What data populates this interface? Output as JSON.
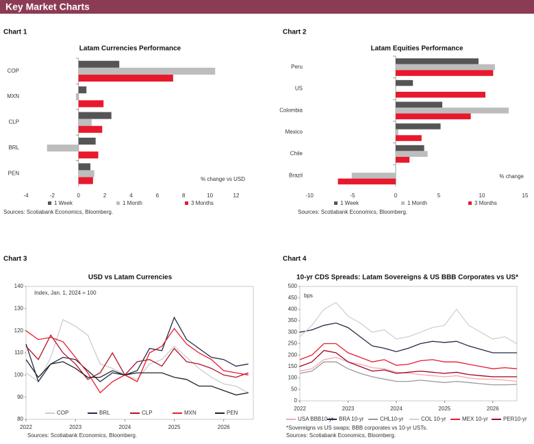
{
  "header": {
    "title": "Key Market Charts"
  },
  "chart_data": [
    {
      "label": "Chart 1",
      "type": "hbar",
      "title": "Latam Currencies Performance",
      "categories": [
        "COP",
        "MXN",
        "CLP",
        "BRL",
        "PEN"
      ],
      "series": [
        {
          "name": "1 Week",
          "color": "#555555",
          "values": [
            3.1,
            0.6,
            2.5,
            1.3,
            0.9
          ]
        },
        {
          "name": "1 Month",
          "color": "#bdbdbd",
          "values": [
            10.4,
            -0.2,
            1.0,
            -2.4,
            1.2
          ]
        },
        {
          "name": "3 Months",
          "color": "#e8192c",
          "values": [
            7.2,
            1.9,
            1.8,
            1.5,
            1.1
          ]
        }
      ],
      "xlim": [
        -4,
        12
      ],
      "xticks": [
        -4,
        -2,
        0,
        2,
        4,
        6,
        8,
        10,
        12
      ],
      "annotation": "% change vs USD",
      "source": "Sources: Scotiabank Economics, Bloomberg.",
      "grid": false
    },
    {
      "label": "Chart 2",
      "type": "hbar",
      "title": "Latam Equities Performance",
      "categories": [
        "Peru",
        "US",
        "Colombia",
        "Mexico",
        "Chile",
        "Brazil"
      ],
      "series": [
        {
          "name": "1 Week",
          "color": "#555555",
          "values": [
            9.6,
            2.0,
            5.4,
            5.2,
            3.3,
            0.0
          ]
        },
        {
          "name": "1 Month",
          "color": "#bdbdbd",
          "values": [
            11.5,
            0.0,
            13.1,
            0.3,
            3.7,
            -5.1
          ]
        },
        {
          "name": "3 Months",
          "color": "#e8192c",
          "values": [
            11.3,
            10.4,
            8.7,
            3.0,
            1.6,
            -6.7
          ]
        }
      ],
      "xlim": [
        -10,
        15
      ],
      "xticks": [
        -10,
        -5,
        0,
        5,
        10,
        15
      ],
      "annotation": "% change",
      "source": "Sources: Scotiabank Economics, Bloomberg.",
      "grid": false
    },
    {
      "label": "Chart 3",
      "type": "line",
      "title": "USD vs Latam Currencies",
      "x": [
        2022,
        2022.25,
        2022.5,
        2022.75,
        2023,
        2023.25,
        2023.5,
        2023.75,
        2024,
        2024.25,
        2024.5,
        2024.75,
        2025,
        2025.25,
        2025.5,
        2025.75,
        2026,
        2026.25,
        2026.5
      ],
      "series": [
        {
          "name": "COP",
          "color": "#cccccc",
          "values": [
            101,
            97,
            108,
            125,
            122,
            118,
            105,
            103,
            100,
            98,
            105,
            107,
            113,
            108,
            103,
            99,
            96,
            95,
            92
          ]
        },
        {
          "name": "BRL",
          "color": "#1f2a44",
          "values": [
            114,
            97,
            105,
            108,
            107,
            102,
            97,
            101,
            100,
            102,
            112,
            111,
            126,
            116,
            112,
            108,
            107,
            104,
            105
          ]
        },
        {
          "name": "CLP",
          "color": "#b0102a",
          "values": [
            113,
            107,
            118,
            110,
            105,
            98,
            101,
            110,
            100,
            106,
            107,
            104,
            112,
            106,
            105,
            103,
            100,
            99,
            101
          ]
        },
        {
          "name": "MXN",
          "color": "#e8192c",
          "values": [
            120,
            116,
            117,
            115,
            108,
            101,
            92,
            97,
            100,
            97,
            110,
            113,
            121,
            114,
            110,
            107,
            102,
            101,
            100
          ]
        },
        {
          "name": "PEN",
          "color": "#222222",
          "values": [
            107,
            99,
            105,
            106,
            103,
            99,
            99,
            102,
            100,
            101,
            101,
            101,
            99,
            98,
            95,
            95,
            93,
            91,
            92
          ]
        }
      ],
      "xlim": [
        2022,
        2026.6
      ],
      "xticks": [
        2022,
        2023,
        2024,
        2025,
        2026
      ],
      "ylim": [
        80,
        140
      ],
      "yticks": [
        80,
        90,
        100,
        110,
        120,
        130,
        140
      ],
      "annotation": "Index, Jan. 1, 2024 = 100",
      "source": "Sources: Scotiabank Economics, Bloomberg.",
      "grid": false
    },
    {
      "label": "Chart 4",
      "type": "line",
      "title": "10-yr CDS Spreads: Latam Sovereigns & US BBB Corporates vs US*",
      "x": [
        2022,
        2022.25,
        2022.5,
        2022.75,
        2023,
        2023.25,
        2023.5,
        2023.75,
        2024,
        2024.25,
        2024.5,
        2024.75,
        2025,
        2025.25,
        2025.5,
        2025.75,
        2026,
        2026.25,
        2026.5
      ],
      "series": [
        {
          "name": "USA BBB10-yr",
          "color": "#f4a6b0",
          "values": [
            130,
            140,
            180,
            190,
            170,
            160,
            145,
            140,
            125,
            120,
            115,
            110,
            105,
            110,
            100,
            95,
            95,
            90,
            85
          ]
        },
        {
          "name": "BRA 10-yr",
          "color": "#1f2a44",
          "values": [
            300,
            310,
            330,
            340,
            320,
            280,
            240,
            230,
            215,
            230,
            250,
            260,
            255,
            260,
            240,
            225,
            210,
            210,
            210
          ]
        },
        {
          "name": "CHL10-yr",
          "color": "#999999",
          "values": [
            120,
            130,
            170,
            170,
            140,
            120,
            105,
            95,
            85,
            85,
            90,
            85,
            80,
            85,
            80,
            75,
            70,
            70,
            72
          ]
        },
        {
          "name": "COL 10-yr",
          "color": "#d0d0d0",
          "values": [
            280,
            330,
            400,
            430,
            370,
            340,
            300,
            310,
            270,
            280,
            300,
            320,
            330,
            400,
            330,
            300,
            270,
            280,
            250
          ]
        },
        {
          "name": "MEX 10-yr",
          "color": "#e8192c",
          "values": [
            180,
            200,
            250,
            250,
            210,
            190,
            170,
            180,
            155,
            160,
            175,
            180,
            170,
            170,
            160,
            150,
            140,
            145,
            140
          ]
        },
        {
          "name": "PER10-yr",
          "color": "#a00020",
          "values": [
            150,
            170,
            220,
            210,
            170,
            150,
            130,
            135,
            120,
            125,
            130,
            125,
            120,
            125,
            115,
            110,
            105,
            105,
            105
          ]
        }
      ],
      "xlim": [
        2022,
        2026.5
      ],
      "xticks": [
        2022,
        2023,
        2024,
        2025,
        2026
      ],
      "ylim": [
        0,
        500
      ],
      "yticks": [
        0,
        50,
        100,
        150,
        200,
        250,
        300,
        350,
        400,
        450,
        500
      ],
      "annotation": "bps",
      "note": "*Sovereigns vs US swaps; BBB corporates vs 10-yr USTs.",
      "source": "Sources: Scotiabank Economics, Bloomberg.",
      "grid": false
    }
  ]
}
